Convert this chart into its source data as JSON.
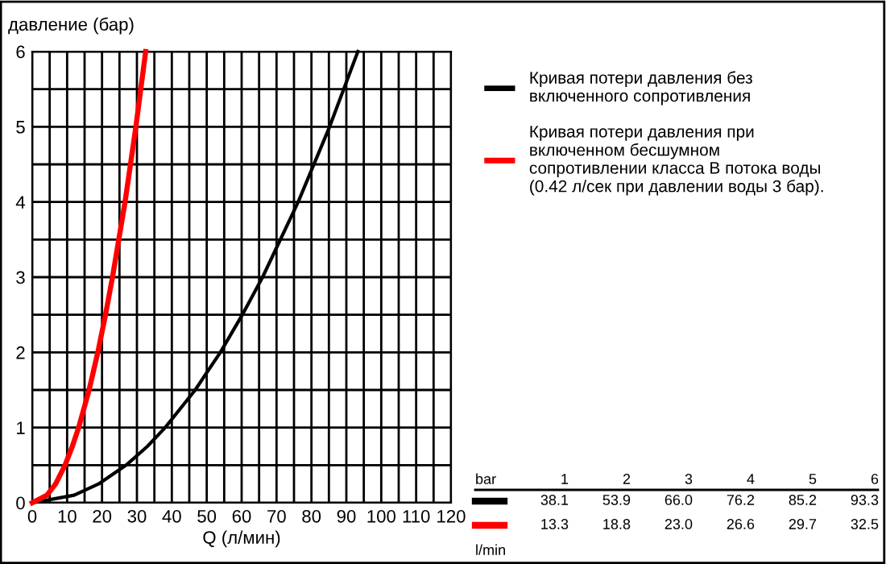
{
  "chart_data": {
    "type": "line",
    "xlabel": "Q (л/мин)",
    "ylabel": "давление (бар)",
    "xlim": [
      0,
      120
    ],
    "ylim": [
      0,
      6
    ],
    "xticks": [
      0,
      {
        "value": 5,
        "label": null
      },
      10,
      {
        "value": 15,
        "label": null
      },
      20,
      {
        "value": 25,
        "label": null
      },
      30,
      {
        "value": 35,
        "label": null
      },
      40,
      {
        "value": 45,
        "label": null
      },
      50,
      {
        "value": 55,
        "label": null
      },
      60,
      {
        "value": 65,
        "label": null
      },
      70,
      {
        "value": 75,
        "label": null
      },
      80,
      {
        "value": 85,
        "label": null
      },
      90,
      {
        "value": 95,
        "label": null
      },
      100,
      {
        "value": 105,
        "label": null
      },
      110,
      {
        "value": 115,
        "label": null
      },
      120
    ],
    "yticks": [
      0,
      {
        "value": 0.5,
        "label": null
      },
      1,
      {
        "value": 1.5,
        "label": null
      },
      2,
      {
        "value": 2.5,
        "label": null
      },
      3,
      {
        "value": 3.5,
        "label": null
      },
      4,
      {
        "value": 4.5,
        "label": null
      },
      5,
      {
        "value": 5.5,
        "label": null
      },
      6
    ],
    "grid": true,
    "legend": "right",
    "marker": "none",
    "line_style": "solid",
    "series": [
      {
        "name": "Кривая потери давления без\nвключенного сопротивления",
        "color": "#000000",
        "x": [
          0,
          12.0,
          19.0,
          26.9,
          33.0,
          38.1,
          46.7,
          53.9,
          60.2,
          66.0,
          76.2,
          85.2,
          93.3
        ],
        "values": [
          0,
          0.1,
          0.25,
          0.5,
          0.75,
          1,
          1.5,
          2,
          2.5,
          3,
          4,
          5,
          6
        ]
      },
      {
        "name": "Кривая потери давления при\nвключенном бесшумном\nсопротивлении класса B потока воды\n(0.42 л/сек при давлении воды 3 бар).",
        "color": "#ff0000",
        "x": [
          0,
          4.2,
          6.7,
          9.4,
          11.5,
          13.3,
          16.3,
          18.8,
          21.0,
          23.0,
          26.6,
          29.7,
          32.5
        ],
        "values": [
          0,
          0.1,
          0.25,
          0.5,
          0.75,
          1,
          1.5,
          2,
          2.5,
          3,
          4,
          5,
          6
        ]
      }
    ],
    "annotations": [
      "bar",
      "1",
      "2",
      "3",
      "4",
      "5",
      "6",
      "38.1",
      "53.9",
      "66.0",
      "76.2",
      "85.2",
      "93.3",
      "13.3",
      "18.8",
      "23.0",
      "26.6",
      "29.7",
      "32.5",
      "l/min"
    ]
  }
}
